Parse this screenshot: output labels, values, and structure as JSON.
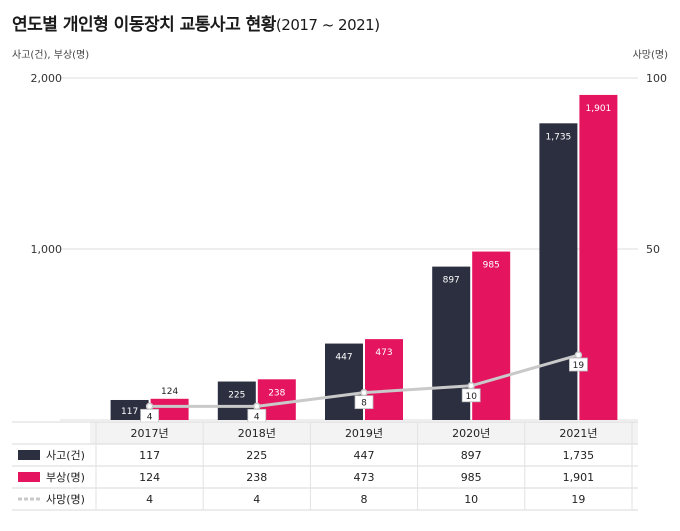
{
  "title": "연도별 개인형 이동장치 교통사고 현황",
  "title_range": "(2017 ~ 2021)",
  "left_axis_unit": "사고(건), 부상(명)",
  "right_axis_unit": "사망(명)",
  "colors": {
    "accident": "#2b2f3f",
    "injury": "#e5145f",
    "death": "#c9c9c9",
    "grid": "#dddddd"
  },
  "chart_data": {
    "type": "bar",
    "title": "연도별 개인형 이동장치 교통사고 현황(2017 ~ 2021)",
    "categories": [
      "2017년",
      "2018년",
      "2019년",
      "2020년",
      "2021년"
    ],
    "series": [
      {
        "name": "사고(건)",
        "type": "bar",
        "axis": "left",
        "values": [
          117,
          225,
          447,
          897,
          1735
        ]
      },
      {
        "name": "부상(명)",
        "type": "bar",
        "axis": "left",
        "values": [
          124,
          238,
          473,
          985,
          1901
        ]
      },
      {
        "name": "사망(명)",
        "type": "line",
        "axis": "right",
        "values": [
          4,
          4,
          8,
          10,
          19
        ]
      }
    ],
    "ylabel_left": "사고(건), 부상(명)",
    "ylabel_right": "사망(명)",
    "ylim_left": [
      0,
      2000
    ],
    "ylim_right": [
      0,
      100
    ],
    "yticks_left": [
      "",
      "1,000",
      "2,000"
    ],
    "yticks_right": [
      "",
      "50",
      "100"
    ],
    "table": {
      "rows": [
        {
          "label": "사고(건)",
          "values": [
            "117",
            "225",
            "447",
            "897",
            "1,735"
          ]
        },
        {
          "label": "부상(명)",
          "values": [
            "124",
            "238",
            "473",
            "985",
            "1,901"
          ]
        },
        {
          "label": "사망(명)",
          "values": [
            "4",
            "4",
            "8",
            "10",
            "19"
          ]
        }
      ]
    },
    "bar_labels": {
      "accident": [
        "117",
        "225",
        "447",
        "897",
        "1,735"
      ],
      "injury": [
        "124",
        "238",
        "473",
        "985",
        "1,901"
      ],
      "death": [
        "4",
        "4",
        "8",
        "10",
        "19"
      ]
    }
  }
}
